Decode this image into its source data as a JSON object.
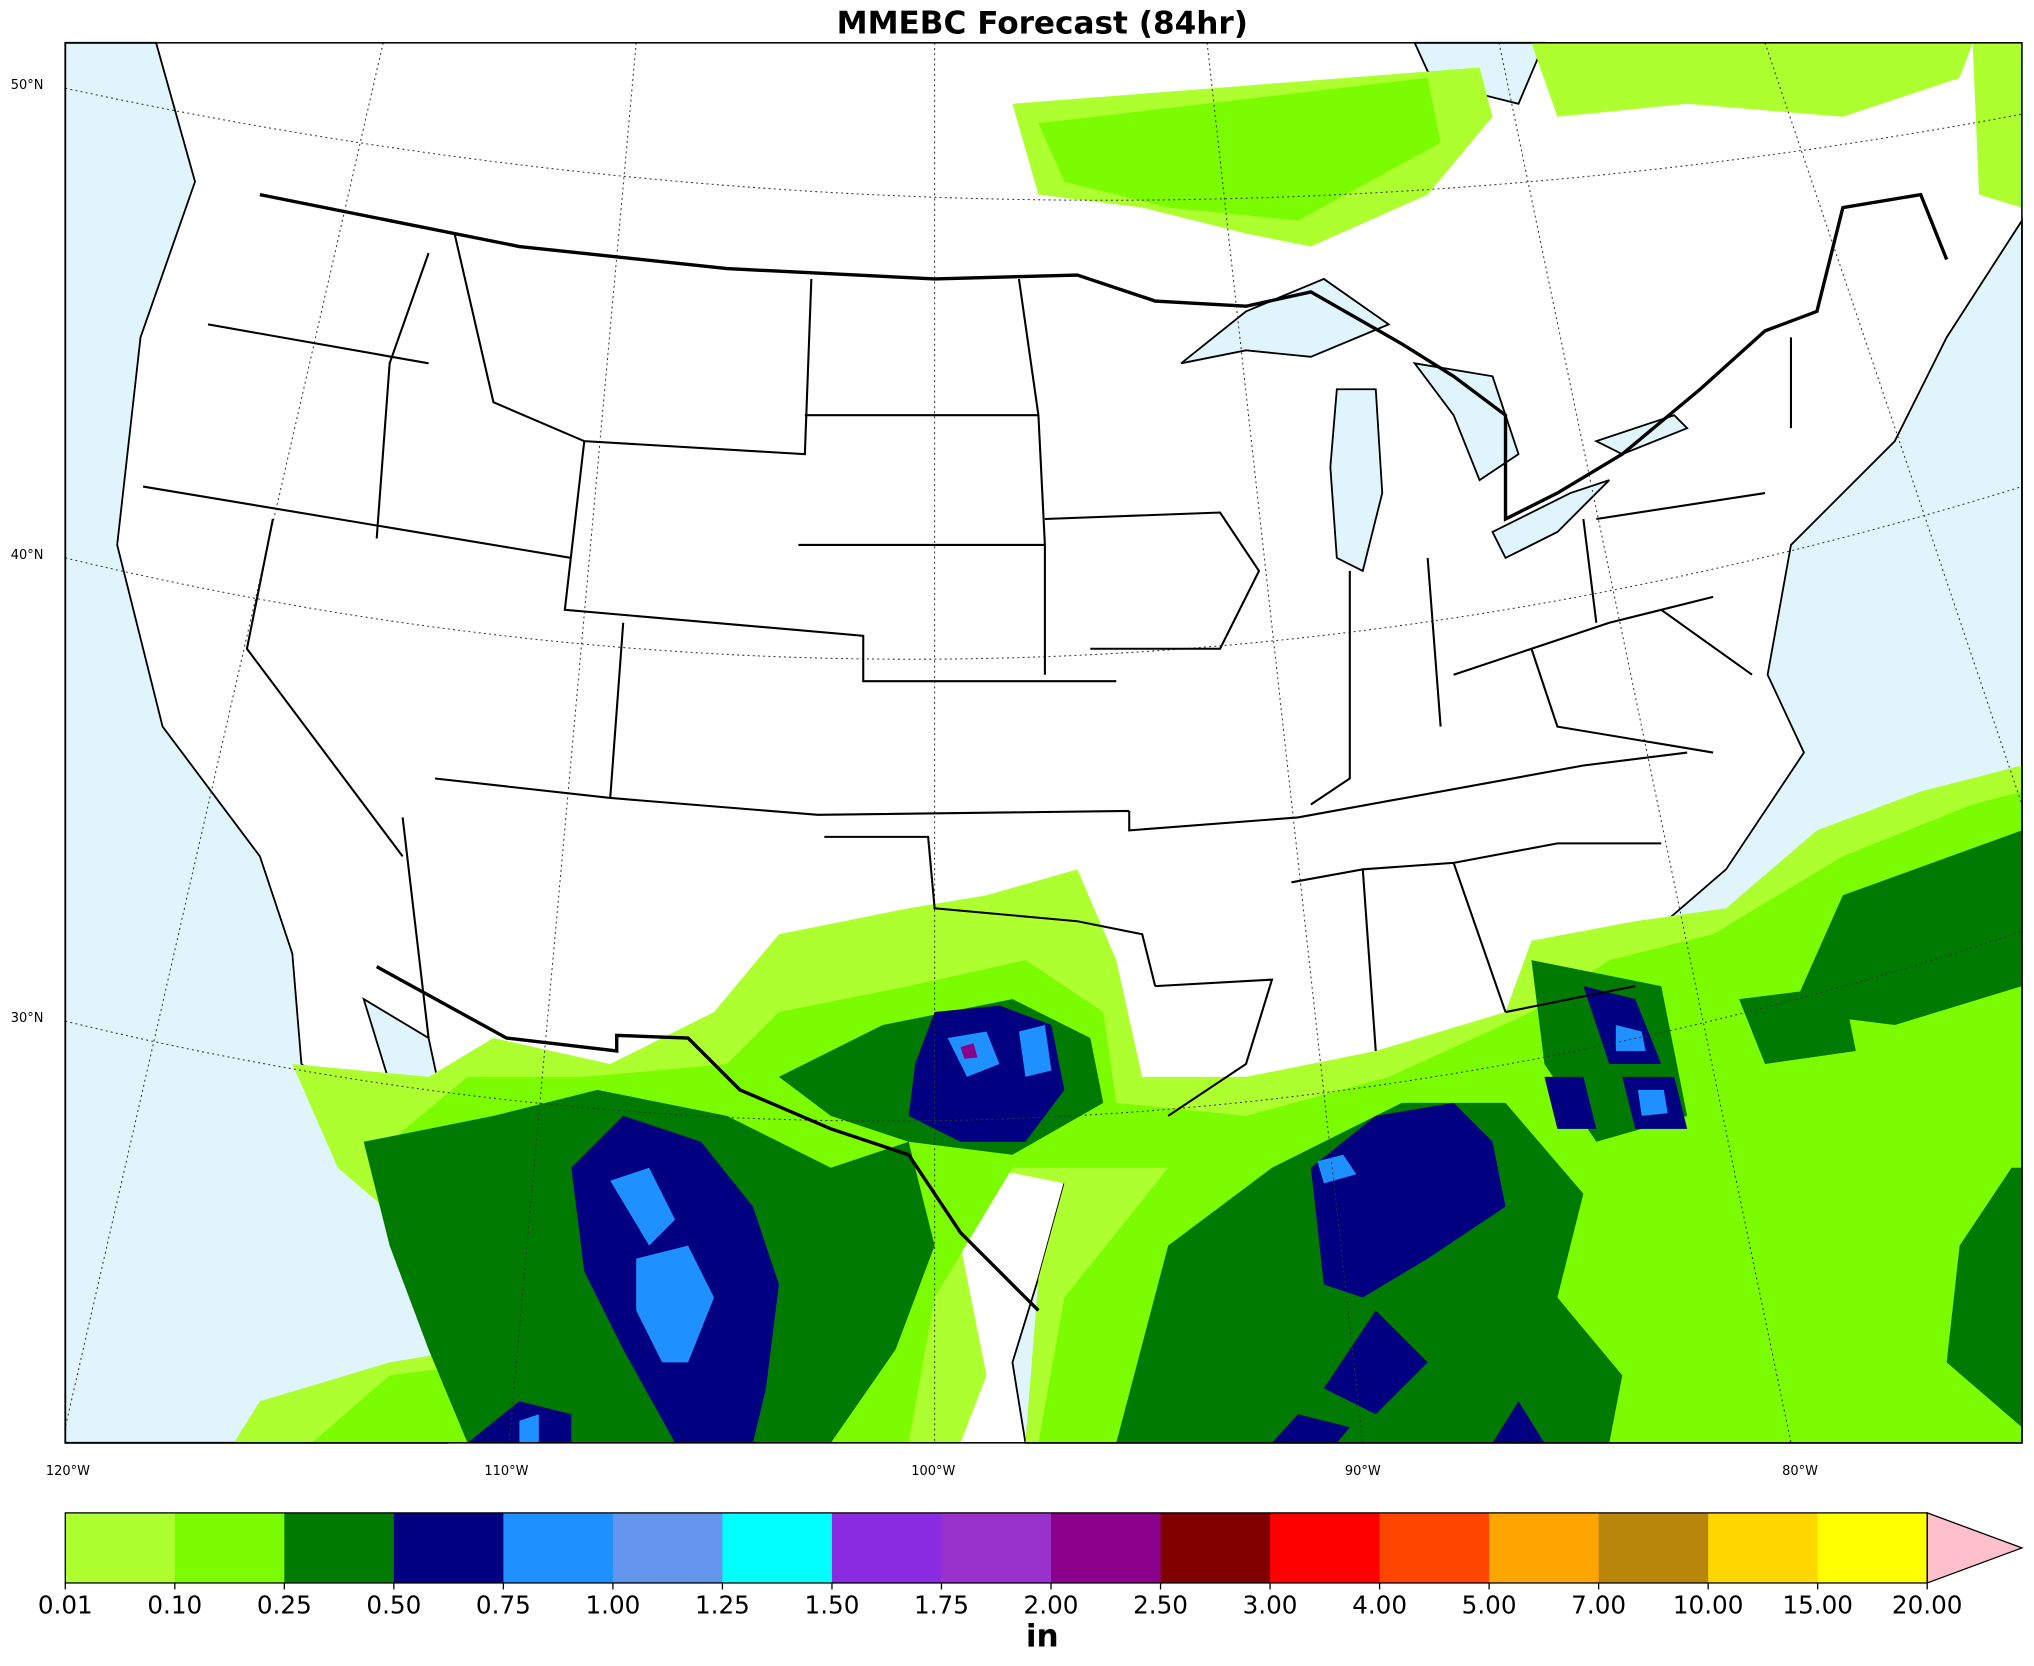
{
  "title": "MMEBC Forecast (84hr)",
  "map": {
    "lat_labels": [
      "50°N",
      "40°N",
      "30°N"
    ],
    "lon_labels": [
      "120°W",
      "110°W",
      "100°W",
      "90°W",
      "80°W"
    ]
  },
  "colorbar": {
    "levels": [
      0.01,
      {
        "value": 0.1,
        "label": "0.10"
      },
      0.25,
      {
        "value": 0.5,
        "label": "0.50"
      },
      0.75,
      {
        "value": 1,
        "label": "1.00"
      },
      1.25,
      {
        "value": 1.5,
        "label": "1.50"
      },
      1.75,
      {
        "value": 2,
        "label": "2.00"
      },
      {
        "value": 2.5,
        "label": "2.50"
      },
      {
        "value": 3,
        "label": "3.00"
      },
      {
        "value": 4,
        "label": "4.00"
      },
      {
        "value": 5,
        "label": "5.00"
      },
      {
        "value": 7,
        "label": "7.00"
      },
      {
        "value": 10,
        "label": "10.00"
      },
      {
        "value": 15,
        "label": "15.00"
      },
      {
        "value": 20,
        "label": "20.00"
      }
    ],
    "colors": [
      "#adff2f",
      "#7cfc00",
      "#007a00",
      "#000080",
      "#1e90ff",
      "#6495ed",
      "#00ffff",
      "#8a2be2",
      "#9932cc",
      "#8b008b",
      "#800000",
      "#ff0000",
      "#ff4500",
      "#ffa500",
      "#b8860b",
      "#ffd700",
      "#ffff00"
    ],
    "extend_color": "#ffc0cb",
    "label": "in"
  }
}
